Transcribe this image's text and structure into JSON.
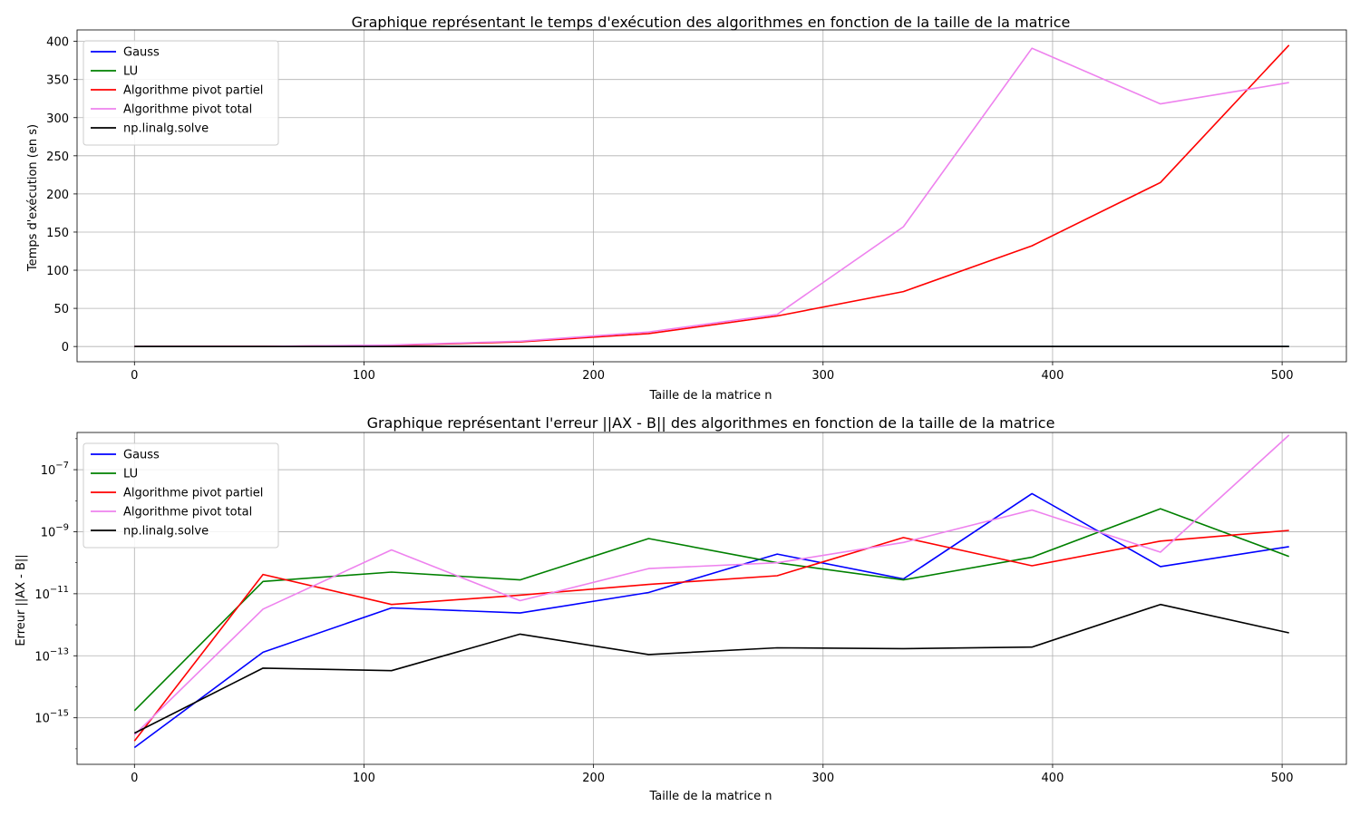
{
  "chart_data": [
    {
      "type": "line",
      "title": "Graphique représentant le temps d'exécution des algorithmes en fonction de la taille de la matrice",
      "xlabel": "Taille de la matrice n",
      "ylabel": "Temps d'exécution (en s)",
      "xlim": [
        -25,
        528
      ],
      "ylim": [
        -20,
        415
      ],
      "xticks": [
        0,
        100,
        200,
        300,
        400,
        500
      ],
      "yticks": [
        0,
        50,
        100,
        150,
        200,
        250,
        300,
        350,
        400
      ],
      "grid": true,
      "legend": "top-left",
      "x": [
        0,
        56,
        112,
        168,
        224,
        280,
        335,
        391,
        447,
        503
      ],
      "series": [
        {
          "name": "Gauss",
          "color": "#0000ff",
          "values": [
            0,
            0,
            0,
            0,
            0,
            0,
            0,
            0,
            0,
            0
          ]
        },
        {
          "name": "LU",
          "color": "#008000",
          "values": [
            0,
            0,
            0,
            0,
            0,
            0,
            0,
            0,
            0,
            0
          ]
        },
        {
          "name": "Algorithme pivot partiel",
          "color": "#ff0000",
          "values": [
            0,
            0.2,
            1.5,
            6,
            17,
            40,
            72,
            132,
            215,
            395
          ]
        },
        {
          "name": "Algorithme pivot total",
          "color": "#ee82ee",
          "values": [
            0,
            0.2,
            2,
            7,
            19,
            42,
            157,
            391,
            318,
            346
          ]
        },
        {
          "name": "np.linalg.solve",
          "color": "#000000",
          "values": [
            0,
            0,
            0,
            0,
            0,
            0,
            0,
            0,
            0,
            0
          ]
        }
      ]
    },
    {
      "type": "line",
      "title": "Graphique représentant l'erreur ||AX - B|| des algorithmes en fonction de la taille de la matrice",
      "xlabel": "Taille de la matrice n",
      "ylabel": "Erreur ||AX - B||",
      "xscale": "linear",
      "yscale": "log",
      "xlim": [
        -25,
        528
      ],
      "ylim_log10": [
        -16.5,
        -5.8
      ],
      "xticks": [
        0,
        100,
        200,
        300,
        400,
        500
      ],
      "yticks_exp": [
        -15,
        -13,
        -11,
        -9,
        -7
      ],
      "ytick_labels": [
        "10^-15",
        "10^-13",
        "10^-11",
        "10^-9",
        "10^-7"
      ],
      "grid": true,
      "legend": "top-left",
      "x": [
        0,
        56,
        112,
        168,
        224,
        280,
        335,
        391,
        447,
        503
      ],
      "series": [
        {
          "name": "Gauss",
          "color": "#0000ff",
          "values": [
            1.1e-16,
            1.3e-13,
            3.5e-12,
            2.4e-12,
            1.1e-11,
            1.9e-10,
            3e-11,
            1.7e-08,
            7.5e-11,
            3.3e-10
          ]
        },
        {
          "name": "LU",
          "color": "#008000",
          "values": [
            1.7e-15,
            2.5e-11,
            5e-11,
            2.8e-11,
            6e-10,
            1e-10,
            2.8e-11,
            1.5e-10,
            5.5e-09,
            1.6e-10
          ]
        },
        {
          "name": "Algorithme pivot partiel",
          "color": "#ff0000",
          "values": [
            1.8e-16,
            4.2e-11,
            4.5e-12,
            9e-12,
            2e-11,
            3.8e-11,
            6.5e-10,
            8e-11,
            5e-10,
            1.1e-09
          ]
        },
        {
          "name": "Algorithme pivot total",
          "color": "#ee82ee",
          "values": [
            2.8e-16,
            3.2e-12,
            2.6e-10,
            6e-12,
            6.5e-11,
            1e-10,
            4.5e-10,
            5e-09,
            2.2e-10,
            1.3e-06
          ]
        },
        {
          "name": "np.linalg.solve",
          "color": "#000000",
          "values": [
            3.2e-16,
            4e-14,
            3.3e-14,
            5e-13,
            1.1e-13,
            1.8e-13,
            1.7e-13,
            1.9e-13,
            4.5e-12,
            5.5e-13
          ]
        }
      ]
    }
  ]
}
